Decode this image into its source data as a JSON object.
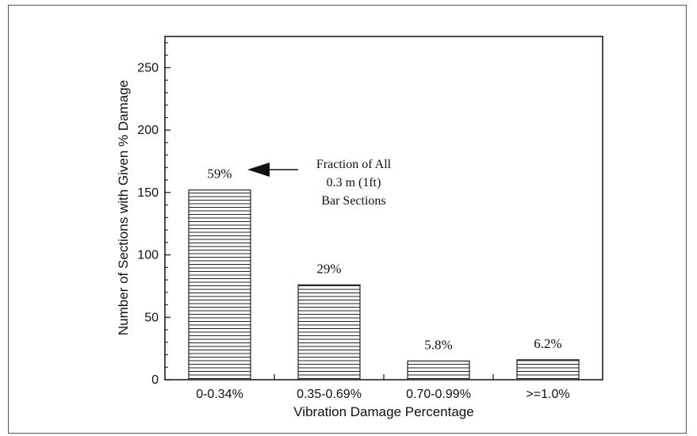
{
  "chart_data": {
    "type": "bar",
    "categories": [
      "0-0.34%",
      "0.35-0.69%",
      "0.70-0.99%",
      ">=1.0%"
    ],
    "values": [
      152,
      76,
      15,
      16
    ],
    "data_labels": [
      "59%",
      "29%",
      "5.8%",
      "6.2%"
    ],
    "xlabel": "Vibration Damage Percentage",
    "ylabel": "Number of Sections with Given % Damage",
    "ylim": [
      0,
      275
    ],
    "yticks": [
      0,
      50,
      100,
      150,
      200,
      250
    ],
    "bar_fill": "horizontal-hatch",
    "bar_color": "#222222",
    "grid": false,
    "annotation": {
      "lines": [
        "Fraction of All",
        "0.3 m (1ft)",
        "Bar Sections"
      ],
      "points_to": "59%"
    }
  }
}
